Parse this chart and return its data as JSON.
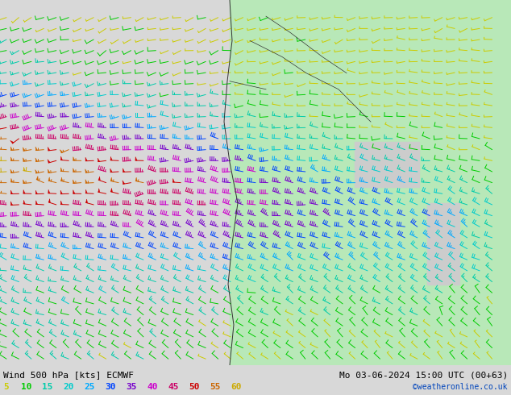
{
  "title_left": "Wind 500 hPa [kts] ECMWF",
  "title_right": "Mo 03-06-2024 15:00 UTC (00+63)",
  "credit": "©weatheronline.co.uk",
  "legend_values": [
    5,
    10,
    15,
    20,
    25,
    30,
    35,
    40,
    45,
    50,
    55,
    60
  ],
  "legend_colors": [
    "#cccc00",
    "#00cc00",
    "#00ccaa",
    "#00cccc",
    "#00aaff",
    "#0044ff",
    "#7700cc",
    "#cc00cc",
    "#cc0066",
    "#cc0000",
    "#cc6600",
    "#ccaa00"
  ],
  "bg_color": "#d8d8d8",
  "map_bg_color": "#f0f0f0",
  "land_green_color": "#aaddaa",
  "land_gray_color": "#cccccc",
  "border_color": "#222222",
  "figsize": [
    6.34,
    4.9
  ],
  "dpi": 100
}
